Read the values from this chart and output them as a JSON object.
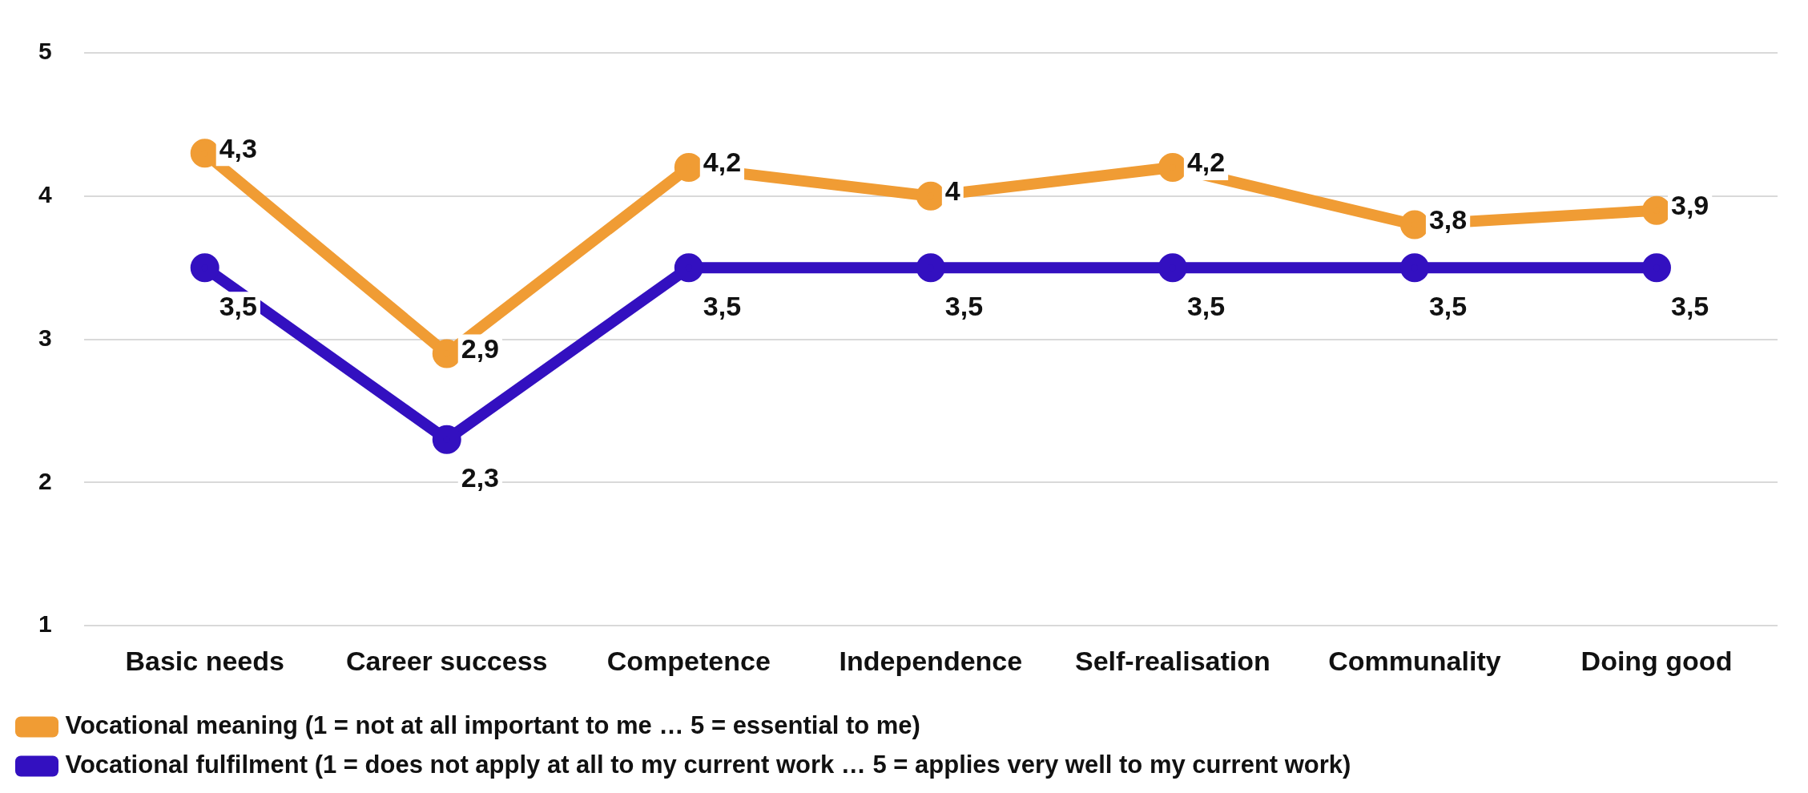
{
  "chart_data": {
    "type": "line",
    "categories": [
      "Basic needs",
      "Career success",
      "Competence",
      "Independence",
      "Self-realisation",
      "Communality",
      "Doing good"
    ],
    "series": [
      {
        "name": "Vocational meaning (1 = not at all important to me … 5 = essential to me)",
        "color": "#f09c34",
        "values": [
          4.3,
          2.9,
          4.2,
          4,
          4.2,
          3.8,
          3.9
        ],
        "value_labels": [
          "4,3",
          "2,9",
          "4,2",
          "4",
          "4,2",
          "3,8",
          "3,9"
        ]
      },
      {
        "name": "Vocational fulfilment (1 = does not apply at all to my current work … 5 = applies very well to my current work)",
        "color": "#3310c0",
        "values": [
          3.5,
          2.3,
          3.5,
          3.5,
          3.5,
          3.5,
          3.5
        ],
        "value_labels": [
          "3,5",
          "2,3",
          "3,5",
          "3,5",
          "3,5",
          "3,5",
          "3,5"
        ]
      }
    ],
    "ylim": [
      1,
      5
    ],
    "yticks": [
      1,
      2,
      3,
      4,
      5
    ],
    "grid": "y",
    "legend": "bottom",
    "marker": "circle",
    "line_style": "solid"
  }
}
